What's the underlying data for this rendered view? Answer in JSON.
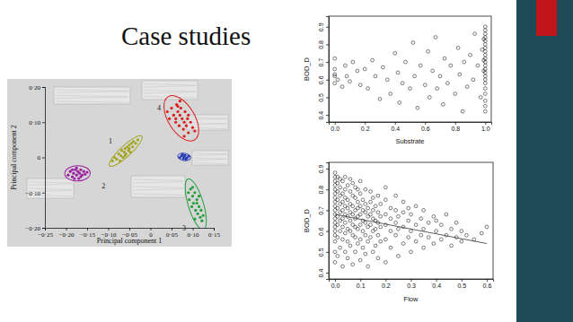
{
  "title": "Case studies",
  "chart_data": [
    {
      "type": "scatter",
      "marker": "dot",
      "x_label": "Principal component 1",
      "y_label": "Principal component 2",
      "xlim": [
        -0.25,
        0.15
      ],
      "ylim": [
        -0.2,
        0.2
      ],
      "xticks": [
        {
          "value": -0.25,
          "label": "−0·25"
        },
        {
          "value": -0.2,
          "label": "−0·20"
        },
        {
          "value": -0.15,
          "label": "−0·15"
        },
        {
          "value": -0.1,
          "label": "−0·10"
        },
        {
          "value": -0.05,
          "label": "−0·05"
        },
        0,
        {
          "value": 0.05,
          "label": "0·05"
        },
        {
          "value": 0.1,
          "label": "0·10"
        },
        {
          "value": 0.15,
          "label": "0·15"
        }
      ],
      "yticks": [
        {
          "value": -0.2,
          "label": "−0·20"
        },
        {
          "value": -0.1,
          "label": "−0·10"
        },
        0,
        {
          "value": 0.1,
          "label": "0·10"
        },
        {
          "value": 0.2,
          "label": "0·20"
        }
      ],
      "series": [
        {
          "name": "1",
          "type": "cluster",
          "color": "#a2a61e",
          "x": [
            -0.09,
            -0.085,
            -0.08,
            -0.075,
            -0.07,
            -0.068,
            -0.065,
            -0.062,
            -0.06,
            -0.058,
            -0.055,
            -0.052,
            -0.05,
            -0.048,
            -0.045,
            -0.042,
            -0.04,
            -0.035,
            -0.03,
            -0.072,
            -0.06,
            -0.05
          ],
          "values": [
            -0.01,
            0.0,
            -0.005,
            0.01,
            0.005,
            0.02,
            0.0,
            0.015,
            0.025,
            0.01,
            0.03,
            0.02,
            0.035,
            0.015,
            0.04,
            0.03,
            0.045,
            0.04,
            0.05,
            -0.01,
            0.005,
            0.025
          ]
        },
        {
          "name": "2",
          "type": "cluster",
          "color": "#9b1fa0",
          "x": [
            -0.195,
            -0.19,
            -0.185,
            -0.182,
            -0.178,
            -0.175,
            -0.172,
            -0.17,
            -0.168,
            -0.165,
            -0.162,
            -0.158,
            -0.155,
            -0.15,
            -0.18,
            -0.175,
            -0.165,
            -0.185
          ],
          "values": [
            -0.05,
            -0.04,
            -0.055,
            -0.045,
            -0.035,
            -0.05,
            -0.04,
            -0.06,
            -0.045,
            -0.035,
            -0.05,
            -0.04,
            -0.048,
            -0.042,
            -0.06,
            -0.03,
            -0.055,
            -0.035
          ]
        },
        {
          "name": "3",
          "type": "cluster",
          "color": "#1f9e3a",
          "x": [
            0.09,
            0.092,
            0.095,
            0.098,
            0.1,
            0.102,
            0.105,
            0.107,
            0.11,
            0.112,
            0.115,
            0.118,
            0.12,
            0.122,
            0.125,
            0.1,
            0.11,
            0.115,
            0.105
          ],
          "values": [
            -0.1,
            -0.12,
            -0.09,
            -0.14,
            -0.11,
            -0.13,
            -0.1,
            -0.15,
            -0.12,
            -0.16,
            -0.14,
            -0.17,
            -0.15,
            -0.18,
            -0.165,
            -0.085,
            -0.13,
            -0.11,
            -0.175
          ]
        },
        {
          "name": "4",
          "type": "cluster",
          "color": "#e01b1b",
          "x": [
            0.04,
            0.045,
            0.05,
            0.055,
            0.06,
            0.062,
            0.065,
            0.068,
            0.07,
            0.072,
            0.075,
            0.078,
            0.08,
            0.082,
            0.085,
            0.088,
            0.09,
            0.095,
            0.1,
            0.105,
            0.06,
            0.07,
            0.08,
            0.09,
            0.065
          ],
          "values": [
            0.13,
            0.11,
            0.14,
            0.12,
            0.1,
            0.15,
            0.13,
            0.09,
            0.12,
            0.14,
            0.11,
            0.08,
            0.1,
            0.13,
            0.09,
            0.11,
            0.07,
            0.1,
            0.085,
            0.075,
            0.11,
            0.16,
            0.06,
            0.12,
            0.145
          ]
        },
        {
          "type": "cluster",
          "color": "#2a3fb5",
          "x": [
            0.07,
            0.074,
            0.078,
            0.08,
            0.082,
            0.086,
            0.09,
            0.076,
            0.084
          ],
          "values": [
            0.0,
            0.005,
            -0.003,
            0.002,
            0.006,
            -0.002,
            0.003,
            0.008,
            -0.005
          ]
        }
      ]
    },
    {
      "type": "scatter",
      "marker": "circle",
      "x_label": "Substrate",
      "y_label": "BOD_D",
      "xlim": [
        -0.04,
        1.04
      ],
      "ylim": [
        0.36,
        0.96
      ],
      "xticks": [
        {
          "value": 0,
          "label": "0.0"
        },
        0.2,
        0.4,
        0.6,
        0.8,
        {
          "value": 1,
          "label": "1.0"
        }
      ],
      "yticks": [
        0.4,
        0.5,
        0.6,
        0.7,
        0.8,
        0.9
      ],
      "series": [
        {
          "color": "#000000",
          "x": [
            0,
            0,
            0,
            0,
            0,
            0.02,
            0.05,
            0.07,
            0.08,
            0.1,
            0.12,
            0.15,
            0.17,
            0.2,
            0.22,
            0.25,
            0.27,
            0.3,
            0.32,
            0.35,
            0.37,
            0.4,
            0.42,
            0.43,
            0.45,
            0.47,
            0.5,
            0.52,
            0.53,
            0.55,
            0.57,
            0.6,
            0.62,
            0.63,
            0.65,
            0.67,
            0.68,
            0.7,
            0.72,
            0.73,
            0.75,
            0.77,
            0.8,
            0.82,
            0.83,
            0.85,
            0.86,
            0.88,
            0.9,
            0.92,
            0.93,
            0.95,
            0.97,
            0.98,
            0.99,
            0.99,
            0.99,
            1,
            1,
            1,
            1,
            1,
            1,
            1,
            1,
            1,
            1,
            1,
            1,
            1,
            1,
            1,
            1,
            1,
            1,
            1,
            1,
            1,
            1
          ],
          "values": [
            0.63,
            0.58,
            0.62,
            0.66,
            0.72,
            0.6,
            0.56,
            0.68,
            0.62,
            0.59,
            0.7,
            0.65,
            0.57,
            0.66,
            0.55,
            0.71,
            0.62,
            0.49,
            0.67,
            0.6,
            0.52,
            0.75,
            0.64,
            0.47,
            0.58,
            0.7,
            0.55,
            0.81,
            0.62,
            0.44,
            0.68,
            0.57,
            0.76,
            0.5,
            0.65,
            0.84,
            0.55,
            0.62,
            0.46,
            0.72,
            0.58,
            0.68,
            0.52,
            0.78,
            0.63,
            0.42,
            0.7,
            0.56,
            0.74,
            0.6,
            0.86,
            0.68,
            0.5,
            0.77,
            0.65,
            0.71,
            0.83,
            0.42,
            0.45,
            0.48,
            0.52,
            0.55,
            0.58,
            0.6,
            0.62,
            0.64,
            0.66,
            0.68,
            0.7,
            0.72,
            0.74,
            0.76,
            0.78,
            0.8,
            0.82,
            0.84,
            0.86,
            0.88,
            0.9
          ]
        }
      ]
    },
    {
      "type": "scatter",
      "marker": "circle",
      "x_label": "Flow",
      "y_label": "BOD_D",
      "xlim": [
        -0.025,
        0.625
      ],
      "ylim": [
        0.37,
        0.93
      ],
      "xticks": [
        {
          "value": 0,
          "label": "0.0"
        },
        0.1,
        0.2,
        0.3,
        0.4,
        0.5,
        0.6
      ],
      "yticks": [
        0.4,
        0.5,
        0.6,
        0.7,
        0.8,
        0.9
      ],
      "series": [
        {
          "color": "#000000",
          "x": [
            0,
            0,
            0,
            0,
            0,
            0,
            0,
            0,
            0,
            0,
            0,
            0,
            0,
            0,
            0,
            0,
            0,
            0,
            0,
            0.01,
            0.01,
            0.01,
            0.01,
            0.01,
            0.01,
            0.01,
            0.01,
            0.01,
            0.02,
            0.02,
            0.02,
            0.02,
            0.02,
            0.02,
            0.02,
            0.02,
            0.03,
            0.03,
            0.03,
            0.03,
            0.03,
            0.03,
            0.03,
            0.03,
            0.04,
            0.04,
            0.04,
            0.04,
            0.04,
            0.04,
            0.04,
            0.04,
            0.05,
            0.05,
            0.05,
            0.05,
            0.05,
            0.05,
            0.05,
            0.06,
            0.06,
            0.06,
            0.06,
            0.06,
            0.06,
            0.06,
            0.07,
            0.07,
            0.07,
            0.07,
            0.07,
            0.07,
            0.07,
            0.08,
            0.08,
            0.08,
            0.08,
            0.08,
            0.08,
            0.08,
            0.09,
            0.09,
            0.09,
            0.09,
            0.09,
            0.09,
            0.1,
            0.1,
            0.1,
            0.1,
            0.1,
            0.1,
            0.1,
            0.11,
            0.11,
            0.11,
            0.11,
            0.11,
            0.12,
            0.12,
            0.12,
            0.12,
            0.12,
            0.12,
            0.13,
            0.13,
            0.13,
            0.13,
            0.13,
            0.14,
            0.14,
            0.14,
            0.14,
            0.14,
            0.15,
            0.15,
            0.15,
            0.15,
            0.15,
            0.16,
            0.16,
            0.16,
            0.16,
            0.17,
            0.17,
            0.17,
            0.17,
            0.17,
            0.18,
            0.18,
            0.18,
            0.18,
            0.2,
            0.2,
            0.2,
            0.2,
            0.2,
            0.2,
            0.22,
            0.22,
            0.22,
            0.22,
            0.24,
            0.24,
            0.24,
            0.24,
            0.25,
            0.25,
            0.25,
            0.27,
            0.27,
            0.27,
            0.27,
            0.29,
            0.29,
            0.29,
            0.3,
            0.3,
            0.3,
            0.32,
            0.32,
            0.32,
            0.34,
            0.34,
            0.35,
            0.35,
            0.35,
            0.37,
            0.37,
            0.39,
            0.39,
            0.4,
            0.4,
            0.42,
            0.42,
            0.44,
            0.44,
            0.46,
            0.46,
            0.48,
            0.48,
            0.5,
            0.5,
            0.52,
            0.55,
            0.58,
            0.6
          ],
          "values": [
            0.45,
            0.5,
            0.55,
            0.58,
            0.6,
            0.62,
            0.64,
            0.66,
            0.68,
            0.7,
            0.72,
            0.74,
            0.76,
            0.78,
            0.8,
            0.82,
            0.84,
            0.86,
            0.88,
            0.48,
            0.57,
            0.63,
            0.67,
            0.71,
            0.75,
            0.79,
            0.83,
            0.86,
            0.52,
            0.6,
            0.65,
            0.69,
            0.73,
            0.77,
            0.81,
            0.85,
            0.43,
            0.56,
            0.62,
            0.66,
            0.7,
            0.74,
            0.78,
            0.84,
            0.5,
            0.59,
            0.64,
            0.68,
            0.72,
            0.76,
            0.8,
            0.86,
            0.47,
            0.55,
            0.61,
            0.67,
            0.71,
            0.75,
            0.82,
            0.53,
            0.6,
            0.65,
            0.69,
            0.73,
            0.79,
            0.85,
            0.44,
            0.58,
            0.63,
            0.68,
            0.72,
            0.77,
            0.83,
            0.5,
            0.57,
            0.62,
            0.66,
            0.7,
            0.76,
            0.81,
            0.54,
            0.61,
            0.67,
            0.71,
            0.74,
            0.8,
            0.46,
            0.56,
            0.63,
            0.68,
            0.72,
            0.78,
            0.84,
            0.52,
            0.6,
            0.65,
            0.7,
            0.75,
            0.49,
            0.58,
            0.64,
            0.69,
            0.73,
            0.8,
            0.43,
            0.55,
            0.62,
            0.67,
            0.71,
            0.57,
            0.63,
            0.68,
            0.74,
            0.79,
            0.5,
            0.6,
            0.66,
            0.7,
            0.76,
            0.53,
            0.61,
            0.65,
            0.72,
            0.47,
            0.58,
            0.64,
            0.69,
            0.77,
            0.55,
            0.62,
            0.67,
            0.73,
            0.45,
            0.56,
            0.63,
            0.68,
            0.75,
            0.81,
            0.52,
            0.6,
            0.66,
            0.71,
            0.58,
            0.64,
            0.7,
            0.77,
            0.48,
            0.61,
            0.67,
            0.54,
            0.62,
            0.69,
            0.74,
            0.57,
            0.65,
            0.71,
            0.5,
            0.6,
            0.68,
            0.55,
            0.63,
            0.72,
            0.58,
            0.66,
            0.52,
            0.61,
            0.7,
            0.57,
            0.64,
            0.54,
            0.67,
            0.6,
            0.65,
            0.56,
            0.63,
            0.58,
            0.68,
            0.53,
            0.61,
            0.57,
            0.64,
            0.55,
            0.6,
            0.58,
            0.56,
            0.59,
            0.62
          ]
        },
        {
          "type": "line",
          "color": "#333333",
          "x": [
            0,
            0.6
          ],
          "values": [
            0.68,
            0.54
          ]
        }
      ]
    }
  ]
}
